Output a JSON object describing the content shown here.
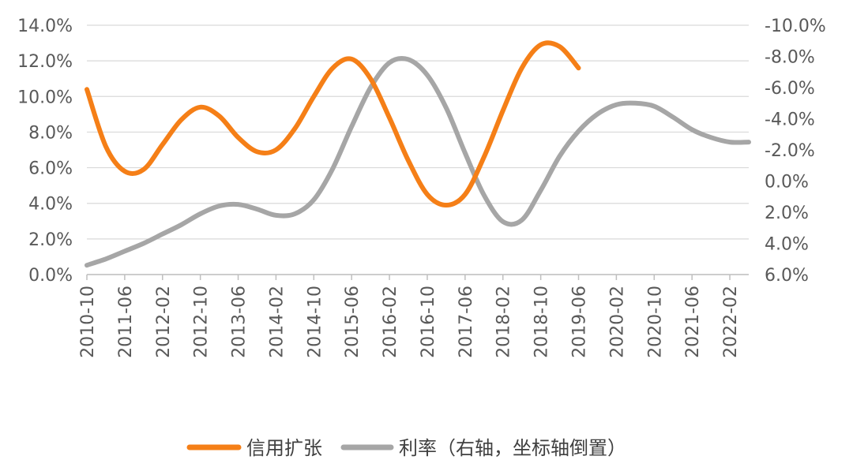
{
  "chart_data": {
    "type": "line",
    "x": [
      "2010-10",
      "2011-02",
      "2011-06",
      "2011-10",
      "2012-02",
      "2012-06",
      "2012-10",
      "2013-02",
      "2013-06",
      "2013-10",
      "2014-02",
      "2014-06",
      "2014-10",
      "2015-02",
      "2015-06",
      "2015-10",
      "2016-02",
      "2016-06",
      "2016-10",
      "2017-02",
      "2017-06",
      "2017-10",
      "2018-02",
      "2018-06",
      "2018-10",
      "2019-02",
      "2019-06",
      "2019-10",
      "2020-02",
      "2020-06",
      "2020-10",
      "2021-02",
      "2021-06",
      "2021-10",
      "2022-02",
      "2022-06"
    ],
    "x_tick_labels": [
      "2010-10",
      "2011-06",
      "2012-02",
      "2012-10",
      "2013-06",
      "2014-02",
      "2014-10",
      "2015-06",
      "2016-02",
      "2016-10",
      "2017-06",
      "2018-02",
      "2018-10",
      "2019-06",
      "2020-02",
      "2020-10",
      "2021-06",
      "2022-02"
    ],
    "y_left": {
      "ylim": [
        0,
        14
      ],
      "ticks": [
        "0.0%",
        "2.0%",
        "4.0%",
        "6.0%",
        "8.0%",
        "10.0%",
        "12.0%",
        "14.0%"
      ]
    },
    "y_right": {
      "ylim": [
        6,
        -10
      ],
      "inverted": true,
      "ticks": [
        "6.0%",
        "4.0%",
        "2.0%",
        "0.0%",
        "-2.0%",
        "-4.0%",
        "-6.0%",
        "-8.0%",
        "-10.0%"
      ]
    },
    "series": [
      {
        "name": "信用扩张",
        "axis": "left",
        "color": "#F57F17",
        "values": [
          10.4,
          7.2,
          5.8,
          5.9,
          7.3,
          8.7,
          9.4,
          8.9,
          7.7,
          6.9,
          7.0,
          8.2,
          10.0,
          11.6,
          12.1,
          11.0,
          8.8,
          6.4,
          4.5,
          3.9,
          4.5,
          6.6,
          9.2,
          11.6,
          12.9,
          12.8,
          11.6,
          null,
          null,
          null,
          null,
          null,
          null,
          null,
          null,
          null
        ]
      },
      {
        "name": "利率（右轴，坐标轴倒置）",
        "axis": "right",
        "color": "#A6A6A6",
        "values": [
          5.4,
          5.0,
          4.5,
          4.0,
          3.4,
          2.8,
          2.1,
          1.6,
          1.5,
          1.8,
          2.2,
          2.1,
          1.2,
          -0.8,
          -3.5,
          -6.0,
          -7.6,
          -7.8,
          -6.8,
          -4.7,
          -1.8,
          0.9,
          2.6,
          2.5,
          0.6,
          -1.6,
          -3.2,
          -4.3,
          -4.9,
          -5.0,
          -4.8,
          -4.1,
          -3.3,
          -2.8,
          -2.5,
          -2.5
        ]
      }
    ],
    "legend": {
      "position": "bottom",
      "entries": [
        "信用扩张",
        "利率（右轴，坐标轴倒置）"
      ]
    },
    "grid": {
      "horizontal": true,
      "vertical": false
    }
  }
}
